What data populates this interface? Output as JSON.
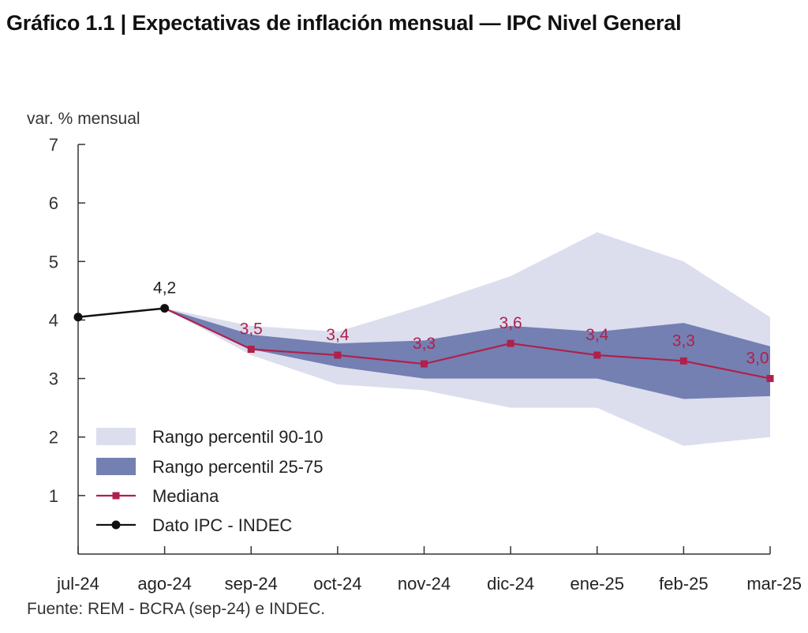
{
  "title": "Gráfico 1.1 | Expectativas de inflación mensual — IPC Nivel General",
  "source": "Fuente: REM - BCRA (sep-24) e INDEC.",
  "colors": {
    "band_90_10": "#dcdeee",
    "band_25_75": "#7480b2",
    "mediana": "#b0204a",
    "ipc": "#111111",
    "axis": "#333333"
  },
  "chart_data": {
    "type": "line",
    "ylabel": "var. % mensual",
    "ylim": [
      0,
      7
    ],
    "yticks": [
      1,
      2,
      3,
      4,
      5,
      6,
      7
    ],
    "grid": false,
    "legend_position": "bottom-left",
    "categories": [
      "jul-24",
      "ago-24",
      "sep-24",
      "oct-24",
      "nov-24",
      "dic-24",
      "ene-25",
      "feb-25",
      "mar-25"
    ],
    "series": [
      {
        "name": "Rango percentil 90-10",
        "kind": "band",
        "x": [
          "ago-24",
          "sep-24",
          "oct-24",
          "nov-24",
          "dic-24",
          "ene-25",
          "feb-25",
          "mar-25"
        ],
        "low": [
          4.2,
          3.4,
          2.9,
          2.8,
          2.5,
          2.5,
          1.85,
          2.0
        ],
        "high": [
          4.2,
          3.9,
          3.8,
          4.25,
          4.75,
          5.5,
          5.0,
          4.05
        ]
      },
      {
        "name": "Rango percentil 25-75",
        "kind": "band",
        "x": [
          "ago-24",
          "sep-24",
          "oct-24",
          "nov-24",
          "dic-24",
          "ene-25",
          "feb-25",
          "mar-25"
        ],
        "low": [
          4.2,
          3.5,
          3.2,
          3.0,
          3.0,
          3.0,
          2.65,
          2.7
        ],
        "high": [
          4.2,
          3.75,
          3.6,
          3.65,
          3.9,
          3.8,
          3.95,
          3.55
        ]
      },
      {
        "name": "Mediana",
        "kind": "line",
        "x": [
          "ago-24",
          "sep-24",
          "oct-24",
          "nov-24",
          "dic-24",
          "ene-25",
          "feb-25",
          "mar-25"
        ],
        "values": [
          4.2,
          3.5,
          3.4,
          3.25,
          3.6,
          3.4,
          3.3,
          3.0
        ],
        "labels": [
          "",
          "3,5",
          "3,4",
          "3,3",
          "3,6",
          "3,4",
          "3,3",
          "3,0"
        ]
      },
      {
        "name": "Dato IPC - INDEC",
        "kind": "line",
        "x": [
          "jul-24",
          "ago-24"
        ],
        "values": [
          4.05,
          4.2
        ],
        "labels": [
          "",
          "4,2"
        ]
      }
    ]
  }
}
